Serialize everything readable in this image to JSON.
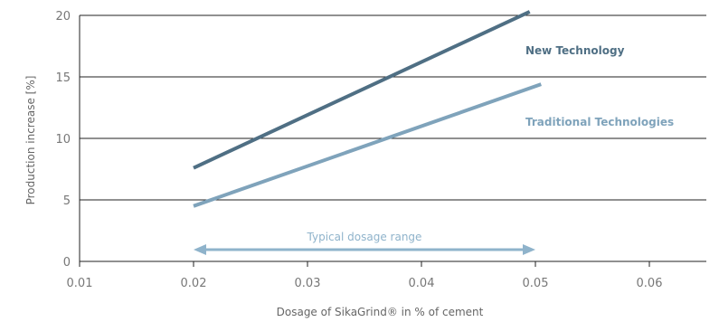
{
  "chart_data": {
    "type": "line",
    "xlabel": "Dosage of SikaGrind® in % of cement",
    "ylabel": "Production increase  [%]",
    "xlim": [
      0.01,
      0.065
    ],
    "ylim": [
      0,
      20
    ],
    "xticks": [
      0.01,
      0.02,
      0.03,
      0.04,
      0.05,
      0.06
    ],
    "xtick_labels": [
      "0.01",
      "0.02",
      "0.03",
      "0.04",
      "0.05",
      "0.06"
    ],
    "yticks": [
      0,
      5,
      10,
      15,
      20
    ],
    "ytick_labels": [
      "0",
      "5",
      "10",
      "15",
      "20"
    ],
    "grid": "horizontal",
    "series": [
      {
        "name": "New Technology",
        "color": "#4f6f84",
        "x": [
          0.02,
          0.0495
        ],
        "y": [
          7.6,
          20.3
        ]
      },
      {
        "name": "Traditional Technologies",
        "color": "#7fa3bb",
        "x": [
          0.02,
          0.0505
        ],
        "y": [
          4.5,
          14.4
        ]
      }
    ],
    "annotation": {
      "label": "Typical dosage range",
      "range": [
        0.02,
        0.05
      ],
      "color": "#8fb3cb"
    }
  }
}
